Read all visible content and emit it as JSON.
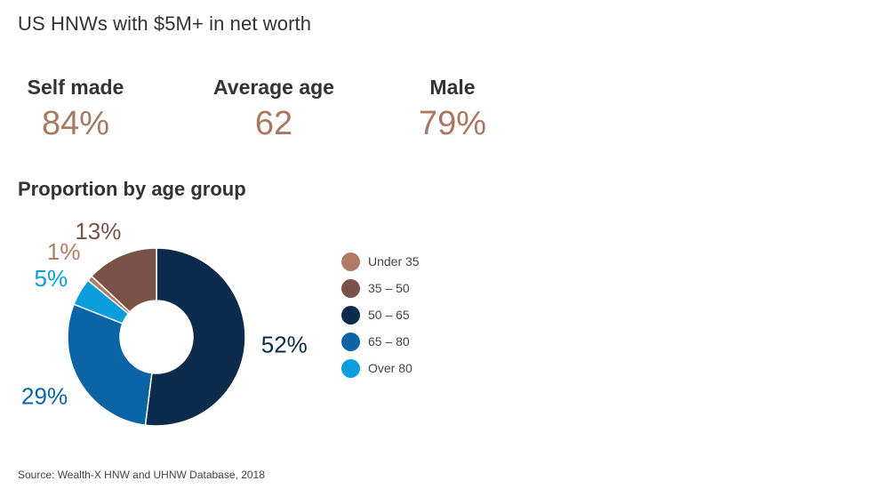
{
  "title": "US HNWs with $5M+ in net worth",
  "stats": [
    {
      "label": "Self made",
      "value": "84%"
    },
    {
      "label": "Average age",
      "value": "62"
    },
    {
      "label": "Male",
      "value": "79%"
    }
  ],
  "section_title": "Proportion by age group",
  "source": "Source: Wealth-X HNW and UHNW Database, 2018",
  "colors": {
    "stat_value": "#a97862",
    "under35": "#b07c66",
    "35_50": "#7a5247",
    "50_65": "#0d2b4c",
    "65_80": "#0a64a5",
    "over80": "#0b9ddc"
  },
  "chart_data": {
    "type": "pie",
    "donut": true,
    "title": "Proportion by age group",
    "legend_position": "right",
    "categories": [
      "Under 35",
      "35 – 50",
      "50 – 65",
      "65 – 80",
      "Over 80"
    ],
    "values": [
      1,
      13,
      52,
      29,
      5
    ],
    "labels": [
      "1%",
      "13%",
      "52%",
      "29%",
      "5%"
    ],
    "colors": [
      "#b07c66",
      "#7a5247",
      "#0d2b4c",
      "#0a64a5",
      "#0b9ddc"
    ],
    "draw_order": [
      2,
      3,
      4,
      0,
      1
    ]
  }
}
